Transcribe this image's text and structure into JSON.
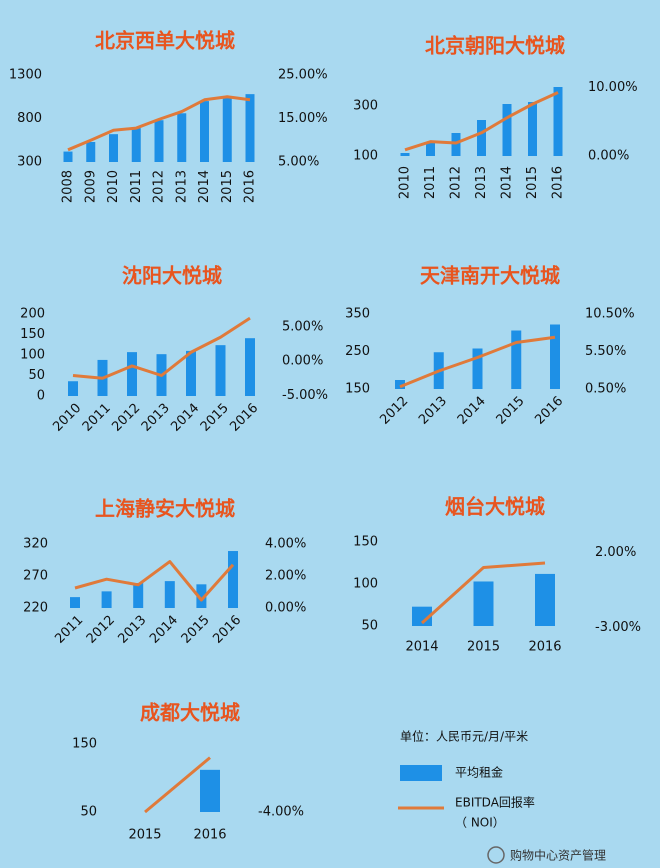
{
  "chart_data": [
    {
      "type": "bar-line",
      "title": "北京西单大悦城",
      "categories": [
        "2008",
        "2009",
        "2010",
        "2011",
        "2012",
        "2013",
        "2014",
        "2015",
        "2016"
      ],
      "series": [
        {
          "color": "#1e90e6",
          "values": [
            420,
            530,
            620,
            690,
            780,
            860,
            1000,
            1050,
            1080
          ]
        },
        {
          "color": "#e07a3a",
          "axis": "y2",
          "values": [
            7.8,
            10,
            12.3,
            12.8,
            14.8,
            16.6,
            19.3,
            20,
            19.3
          ]
        }
      ],
      "ylim": [
        300,
        1300
      ],
      "yticks": [
        300,
        800,
        1300
      ],
      "y2lim": [
        5,
        25
      ],
      "y2ticks": [
        {
          "value": 5,
          "label": "5.00%"
        },
        {
          "value": 15,
          "label": "15.00%"
        },
        {
          "value": 25,
          "label": "25.00%"
        }
      ]
    },
    {
      "type": "bar-line",
      "title": "北京朝阳大悦城",
      "categories": [
        "2010",
        "2011",
        "2012",
        "2013",
        "2014",
        "2015",
        "2016"
      ],
      "series": [
        {
          "color": "#1e90e6",
          "values": [
            112,
            156,
            192,
            244,
            308,
            316,
            376
          ]
        },
        {
          "color": "#e07a3a",
          "axis": "y2",
          "values": [
            0.9,
            2.1,
            1.9,
            3.4,
            5.6,
            7.6,
            9.3
          ]
        }
      ],
      "ylim": [
        100,
        384
      ],
      "yticks": [
        100,
        300
      ],
      "y2lim": [
        0,
        10.4
      ],
      "y2ticks": [
        {
          "value": 0,
          "label": "0.00%"
        },
        {
          "value": 10,
          "label": "10.00%"
        }
      ]
    },
    {
      "type": "bar-line",
      "title": "沈阳大悦城",
      "categories": [
        "2010",
        "2011",
        "2012",
        "2013",
        "2014",
        "2015",
        "2016"
      ],
      "series": [
        {
          "color": "#1e90e6",
          "values": [
            36,
            88,
            107,
            102,
            110,
            124,
            141
          ]
        },
        {
          "color": "#e07a3a",
          "axis": "y2",
          "values": [
            -2.1,
            -2.5,
            -0.7,
            -2.1,
            1.3,
            3.5,
            6.3
          ]
        }
      ],
      "ylim": [
        0,
        200
      ],
      "yticks": [
        0,
        50,
        100,
        150,
        200
      ],
      "y2lim": [
        -5.1,
        6.9
      ],
      "y2ticks": [
        {
          "value": -5,
          "label": "-5.00%"
        },
        {
          "value": 0,
          "label": "0.00%"
        },
        {
          "value": 5,
          "label": "5.00%"
        }
      ]
    },
    {
      "type": "bar-line",
      "title": "天津南开大悦城",
      "categories": [
        "2012",
        "2013",
        "2014",
        "2015",
        "2016"
      ],
      "series": [
        {
          "color": "#1e90e6",
          "values": [
            174,
            248,
            258,
            306,
            322
          ]
        },
        {
          "color": "#e07a3a",
          "axis": "y2",
          "values": [
            0.8,
            2.9,
            4.7,
            6.7,
            7.4
          ]
        }
      ],
      "ylim": [
        150,
        350
      ],
      "yticks": [
        150,
        250,
        350
      ],
      "y2lim": [
        0.5,
        10.5
      ],
      "y2ticks": [
        {
          "value": 0.5,
          "label": "0.50%"
        },
        {
          "value": 5.5,
          "label": "5.50%"
        },
        {
          "value": 10.5,
          "label": "10.50%"
        }
      ]
    },
    {
      "type": "bar-line",
      "title": "上海静安大悦城",
      "categories": [
        "2011",
        "2012",
        "2013",
        "2014",
        "2015",
        "2016"
      ],
      "series": [
        {
          "color": "#1e90e6",
          "values": [
            237,
            246,
            259,
            262,
            257,
            309
          ]
        },
        {
          "color": "#e07a3a",
          "axis": "y2",
          "values": [
            1.25,
            1.8,
            1.45,
            2.9,
            0.5,
            2.7
          ]
        }
      ],
      "ylim": [
        220,
        320
      ],
      "yticks": [
        220,
        270,
        320
      ],
      "y2lim": [
        0,
        4
      ],
      "y2ticks": [
        {
          "value": 0,
          "label": "0.00%"
        },
        {
          "value": 2,
          "label": "2.00%"
        },
        {
          "value": 4,
          "label": "4.00%"
        }
      ]
    },
    {
      "type": "bar-line",
      "title": "烟台大悦城",
      "categories": [
        "2014",
        "2015",
        "2016"
      ],
      "series": [
        {
          "color": "#1e90e6",
          "values": [
            73,
            103,
            112
          ]
        },
        {
          "color": "#e07a3a",
          "axis": "y2",
          "values": [
            -2.7,
            1.0,
            1.3
          ]
        }
      ],
      "ylim": [
        50,
        150
      ],
      "yticks": [
        50,
        100,
        150
      ],
      "y2lim": [
        -2.9,
        2.7
      ],
      "y2ticks": [
        {
          "value": -3,
          "label": "-3.00%"
        },
        {
          "value": 2,
          "label": "2.00%"
        }
      ]
    },
    {
      "type": "bar-line",
      "title": "成都大悦城",
      "categories": [
        "2015",
        "2016"
      ],
      "series": [
        {
          "color": "#1e90e6",
          "values": [
            null,
            112
          ]
        },
        {
          "color": "#e07a3a",
          "axis": "y2",
          "values": [
            -4.0,
            0.8
          ]
        }
      ],
      "ylim": [
        50,
        150
      ],
      "yticks": [
        50,
        150
      ],
      "y2lim": [
        -4,
        2
      ],
      "y2ticks": [
        {
          "value": -4,
          "label": "-4.00%"
        }
      ]
    }
  ],
  "legend": {
    "unit": "单位：人民币元/月/平米",
    "bar": "平均租金",
    "line": "EBITDA回报率",
    "line_note": "（ NOI）"
  },
  "watermark": "购物中心资产管理"
}
